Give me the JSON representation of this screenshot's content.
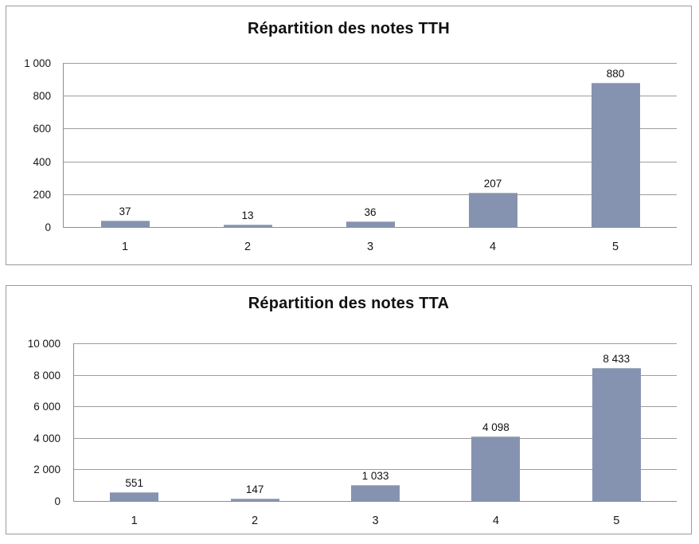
{
  "style": {
    "background": "#ffffff",
    "bar_fill": "#8693B0",
    "bar_top_highlight": "#a9b2c6",
    "gridline_color": "#9d9d9d",
    "axis_color": "#8f8f8f",
    "panel_border": "#9b9b9b",
    "text_color": "#111111"
  },
  "chart_data": [
    {
      "type": "bar",
      "title": "Répartition des notes TTH",
      "categories": [
        "1",
        "2",
        "3",
        "4",
        "5"
      ],
      "values": [
        37,
        13,
        36,
        207,
        880
      ],
      "data_labels": [
        "37",
        "13",
        "36",
        "207",
        "880"
      ],
      "xlabel": "",
      "ylabel": "",
      "ylim": [
        0,
        1000
      ],
      "y_tick_interval": 200,
      "y_tick_labels_top_to_bottom": [
        "1 000",
        "800",
        "600",
        "400",
        "200",
        "0"
      ],
      "grid": "horizontal",
      "legend": "none",
      "number_format": "french thousands space"
    },
    {
      "type": "bar",
      "title": "Répartition des notes TTA",
      "categories": [
        "1",
        "2",
        "3",
        "4",
        "5"
      ],
      "values": [
        551,
        147,
        1033,
        4098,
        8433
      ],
      "data_labels": [
        "551",
        "147",
        "1 033",
        "4 098",
        "8 433"
      ],
      "xlabel": "",
      "ylabel": "",
      "ylim": [
        0,
        10000
      ],
      "y_tick_interval": 2000,
      "y_tick_labels_top_to_bottom": [
        "10 000",
        "8 000",
        "6 000",
        "4 000",
        "2 000",
        "0"
      ],
      "grid": "horizontal",
      "legend": "none",
      "number_format": "french thousands space"
    }
  ]
}
